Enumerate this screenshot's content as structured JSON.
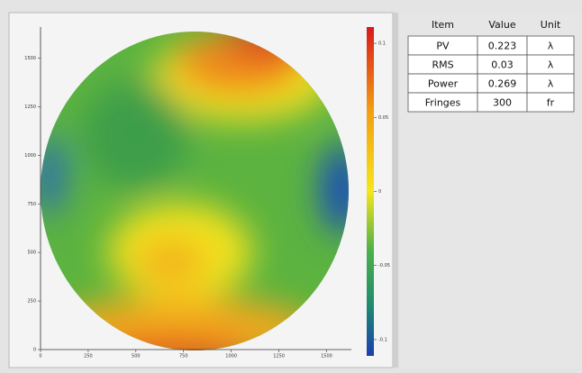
{
  "surface_map": {
    "xlim": [
      0,
      1630
    ],
    "ylim": [
      0,
      1660
    ],
    "xticks": [
      0,
      250,
      500,
      750,
      1000,
      1250,
      1500
    ],
    "yticks": [
      0,
      250,
      500,
      750,
      1000,
      1250,
      1500
    ],
    "clim": [
      -0.111,
      0.111
    ],
    "colorbar_ticks": [
      0.1,
      0.05,
      0,
      -0.05,
      -0.1
    ]
  },
  "results_table": {
    "columns": [
      "Item",
      "Value",
      "Unit"
    ],
    "rows": [
      [
        "PV",
        0.223,
        "λ"
      ],
      [
        "RMS",
        0.03,
        "λ"
      ],
      [
        "Power",
        0.269,
        "λ"
      ],
      [
        "Fringes",
        300,
        "fr"
      ]
    ]
  }
}
